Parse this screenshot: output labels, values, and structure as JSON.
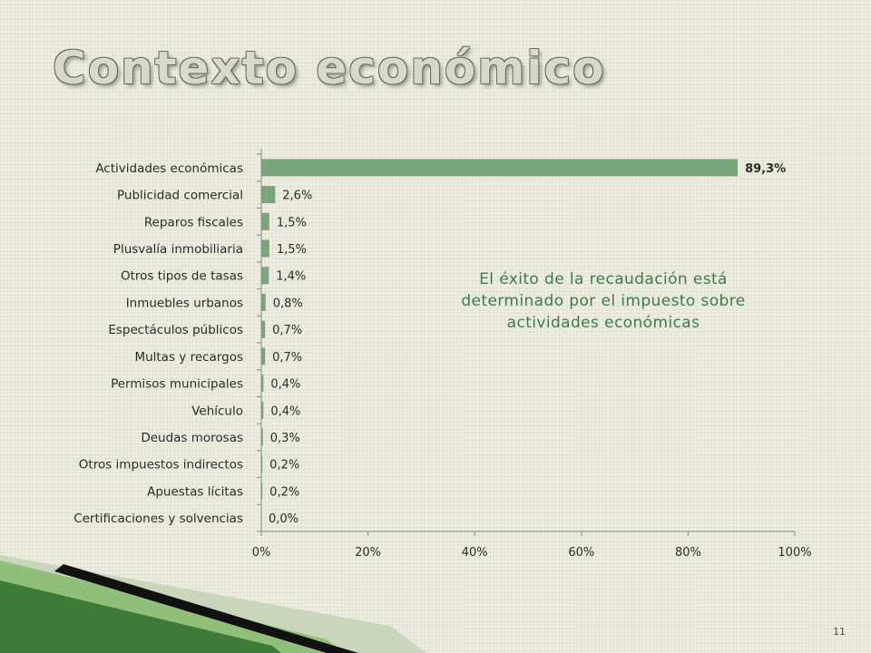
{
  "slide": {
    "title": "Contexto económico",
    "annotation": "El éxito de la recaudación está determinado por el impuesto sobre actividades económicas",
    "page_number": "11"
  },
  "colors": {
    "bar": "#79a57a",
    "axis": "#8a8a8a",
    "annotation": "#3f7a4d",
    "deco_dark": "#3e7a38",
    "deco_light": "#8fbf78",
    "deco_pale": "#c9d6bc"
  },
  "chart_data": {
    "type": "bar",
    "orientation": "horizontal",
    "categories": [
      "Actividades económicas",
      "Publicidad comercial",
      "Reparos fiscales",
      "Plusvalía inmobiliaria",
      "Otros tipos de tasas",
      "Inmuebles urbanos",
      "Espectáculos públicos",
      "Multas y recargos",
      "Permisos municipales",
      "Vehículo",
      "Deudas morosas",
      "Otros impuestos indirectos",
      "Apuestas lícitas",
      "Certificaciones y solvencias"
    ],
    "values": [
      89.3,
      2.6,
      1.5,
      1.5,
      1.4,
      0.8,
      0.7,
      0.7,
      0.4,
      0.4,
      0.3,
      0.2,
      0.2,
      0.0
    ],
    "value_labels": [
      "89,3%",
      "2,6%",
      "1,5%",
      "1,5%",
      "1,4%",
      "0,8%",
      "0,7%",
      "0,7%",
      "0,4%",
      "0,4%",
      "0,3%",
      "0,2%",
      "0,2%",
      "0,0%"
    ],
    "x_ticks": [
      "0%",
      "20%",
      "40%",
      "60%",
      "80%",
      "100%"
    ],
    "xlim": [
      0,
      100
    ],
    "xlabel": "",
    "ylabel": "",
    "grid": false,
    "legend": "none"
  }
}
